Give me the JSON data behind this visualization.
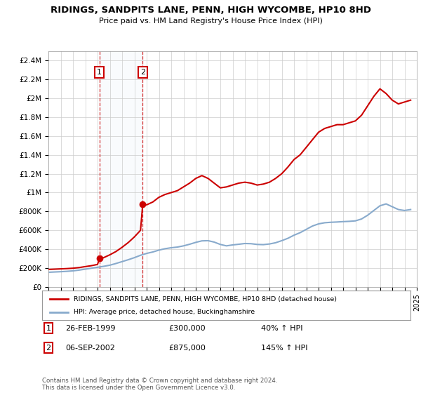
{
  "title": "RIDINGS, SANDPITS LANE, PENN, HIGH WYCOMBE, HP10 8HD",
  "subtitle": "Price paid vs. HM Land Registry's House Price Index (HPI)",
  "ylim": [
    0,
    2500000
  ],
  "yticks": [
    0,
    200000,
    400000,
    600000,
    800000,
    1000000,
    1200000,
    1400000,
    1600000,
    1800000,
    2000000,
    2200000,
    2400000
  ],
  "ytick_labels": [
    "£0",
    "£200K",
    "£400K",
    "£600K",
    "£800K",
    "£1M",
    "£1.2M",
    "£1.4M",
    "£1.6M",
    "£1.8M",
    "£2M",
    "£2.2M",
    "£2.4M"
  ],
  "background_color": "#ffffff",
  "plot_bg_color": "#ffffff",
  "grid_color": "#cccccc",
  "red_line_color": "#cc0000",
  "blue_line_color": "#88aacc",
  "transaction_color": "#cc0000",
  "purchase1_year": 1999.15,
  "purchase1_price": 300000,
  "purchase2_year": 2002.68,
  "purchase2_price": 875000,
  "legend_label_red": "RIDINGS, SANDPITS LANE, PENN, HIGH WYCOMBE, HP10 8HD (detached house)",
  "legend_label_blue": "HPI: Average price, detached house, Buckinghamshire",
  "footer": "Contains HM Land Registry data © Crown copyright and database right 2024.\nThis data is licensed under the Open Government Licence v3.0.",
  "row1_date": "26-FEB-1999",
  "row1_price": "£300,000",
  "row1_pct": "40% ↑ HPI",
  "row2_date": "06-SEP-2002",
  "row2_price": "£875,000",
  "row2_pct": "145% ↑ HPI",
  "red_x": [
    1995.0,
    1995.5,
    1996.0,
    1996.5,
    1997.0,
    1997.5,
    1998.0,
    1998.5,
    1999.0,
    1999.15,
    1999.5,
    2000.0,
    2000.5,
    2001.0,
    2001.5,
    2002.0,
    2002.5,
    2002.68,
    2003.0,
    2003.5,
    2004.0,
    2004.5,
    2005.0,
    2005.5,
    2006.0,
    2006.5,
    2007.0,
    2007.5,
    2008.0,
    2008.5,
    2009.0,
    2009.5,
    2010.0,
    2010.5,
    2011.0,
    2011.5,
    2012.0,
    2012.5,
    2013.0,
    2013.5,
    2014.0,
    2014.5,
    2015.0,
    2015.5,
    2016.0,
    2016.5,
    2017.0,
    2017.5,
    2018.0,
    2018.5,
    2019.0,
    2019.5,
    2020.0,
    2020.5,
    2021.0,
    2021.5,
    2022.0,
    2022.5,
    2023.0,
    2023.5,
    2024.0,
    2024.5
  ],
  "red_y": [
    185000,
    188000,
    191000,
    194000,
    198000,
    205000,
    215000,
    225000,
    238000,
    300000,
    310000,
    340000,
    375000,
    420000,
    470000,
    530000,
    600000,
    875000,
    870000,
    900000,
    950000,
    980000,
    1000000,
    1020000,
    1060000,
    1100000,
    1150000,
    1180000,
    1150000,
    1100000,
    1050000,
    1060000,
    1080000,
    1100000,
    1110000,
    1100000,
    1080000,
    1090000,
    1110000,
    1150000,
    1200000,
    1270000,
    1350000,
    1400000,
    1480000,
    1560000,
    1640000,
    1680000,
    1700000,
    1720000,
    1720000,
    1740000,
    1760000,
    1820000,
    1920000,
    2020000,
    2100000,
    2050000,
    1980000,
    1940000,
    1960000,
    1980000
  ],
  "blue_x": [
    1995.0,
    1995.5,
    1996.0,
    1996.5,
    1997.0,
    1997.5,
    1998.0,
    1998.5,
    1999.0,
    1999.5,
    2000.0,
    2000.5,
    2001.0,
    2001.5,
    2002.0,
    2002.5,
    2003.0,
    2003.5,
    2004.0,
    2004.5,
    2005.0,
    2005.5,
    2006.0,
    2006.5,
    2007.0,
    2007.5,
    2008.0,
    2008.5,
    2009.0,
    2009.5,
    2010.0,
    2010.5,
    2011.0,
    2011.5,
    2012.0,
    2012.5,
    2013.0,
    2013.5,
    2014.0,
    2014.5,
    2015.0,
    2015.5,
    2016.0,
    2016.5,
    2017.0,
    2017.5,
    2018.0,
    2018.5,
    2019.0,
    2019.5,
    2020.0,
    2020.5,
    2021.0,
    2021.5,
    2022.0,
    2022.5,
    2023.0,
    2023.5,
    2024.0,
    2024.5
  ],
  "blue_y": [
    155000,
    158000,
    161000,
    165000,
    170000,
    178000,
    188000,
    198000,
    208000,
    218000,
    230000,
    248000,
    268000,
    288000,
    310000,
    335000,
    355000,
    370000,
    390000,
    405000,
    415000,
    422000,
    435000,
    452000,
    472000,
    488000,
    490000,
    475000,
    450000,
    435000,
    445000,
    452000,
    460000,
    458000,
    450000,
    448000,
    455000,
    468000,
    490000,
    515000,
    548000,
    575000,
    610000,
    645000,
    668000,
    680000,
    685000,
    688000,
    692000,
    695000,
    700000,
    720000,
    760000,
    810000,
    860000,
    880000,
    850000,
    820000,
    810000,
    820000
  ]
}
